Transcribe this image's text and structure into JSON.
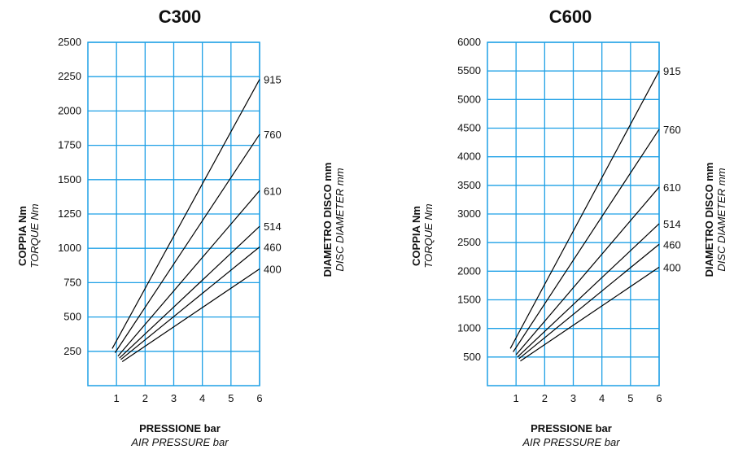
{
  "chart_data": [
    {
      "type": "line",
      "title": "C300",
      "ylabel": "COPPIA Nm",
      "ylabel_en": "TORQUE Nm",
      "xlabel": "PRESSIONE bar",
      "xlabel_en": "AIR PRESSURE bar",
      "right_label": "DIAMETRO DISCO mm",
      "right_label_en": "DISC DIAMETER mm",
      "xlim": [
        0,
        6
      ],
      "ylim": [
        0,
        2500
      ],
      "xticks": [
        "1",
        "2",
        "3",
        "4",
        "5",
        "6"
      ],
      "yticks": [
        "250",
        "500",
        "750",
        "1000",
        "1250",
        "1500",
        "1750",
        "2000",
        "2250",
        "2500"
      ],
      "grid": true,
      "series": [
        {
          "name": "915",
          "x": [
            0.85,
            6
          ],
          "y": [
            270,
            2230
          ]
        },
        {
          "name": "760",
          "x": [
            0.95,
            6
          ],
          "y": [
            240,
            1830
          ]
        },
        {
          "name": "610",
          "x": [
            1.05,
            6
          ],
          "y": [
            215,
            1420
          ]
        },
        {
          "name": "514",
          "x": [
            1.1,
            6
          ],
          "y": [
            200,
            1160
          ]
        },
        {
          "name": "460",
          "x": [
            1.15,
            6
          ],
          "y": [
            190,
            1010
          ]
        },
        {
          "name": "400",
          "x": [
            1.2,
            6
          ],
          "y": [
            175,
            850
          ]
        }
      ]
    },
    {
      "type": "line",
      "title": "C600",
      "ylabel": "COPPIA Nm",
      "ylabel_en": "TORQUE Nm",
      "xlabel": "PRESSIONE bar",
      "xlabel_en": "AIR PRESSURE bar",
      "right_label": "DIAMETRO DISCO mm",
      "right_label_en": "DISC DIAMETER mm",
      "xlim": [
        0,
        6
      ],
      "ylim": [
        0,
        6000
      ],
      "xticks": [
        "1",
        "2",
        "3",
        "4",
        "5",
        "6"
      ],
      "yticks": [
        "500",
        "1000",
        "1500",
        "2000",
        "2500",
        "3000",
        "3500",
        "4000",
        "4500",
        "5000",
        "5500",
        "6000"
      ],
      "grid": true,
      "series": [
        {
          "name": "915",
          "x": [
            0.8,
            6
          ],
          "y": [
            650,
            5500
          ]
        },
        {
          "name": "760",
          "x": [
            0.9,
            6
          ],
          "y": [
            590,
            4480
          ]
        },
        {
          "name": "610",
          "x": [
            1.0,
            6
          ],
          "y": [
            540,
            3470
          ]
        },
        {
          "name": "514",
          "x": [
            1.05,
            6
          ],
          "y": [
            500,
            2830
          ]
        },
        {
          "name": "460",
          "x": [
            1.1,
            6
          ],
          "y": [
            470,
            2470
          ]
        },
        {
          "name": "400",
          "x": [
            1.15,
            6
          ],
          "y": [
            430,
            2070
          ]
        }
      ]
    }
  ],
  "style": {
    "grid_color": "#1ea0e6",
    "line_color": "#000000"
  }
}
